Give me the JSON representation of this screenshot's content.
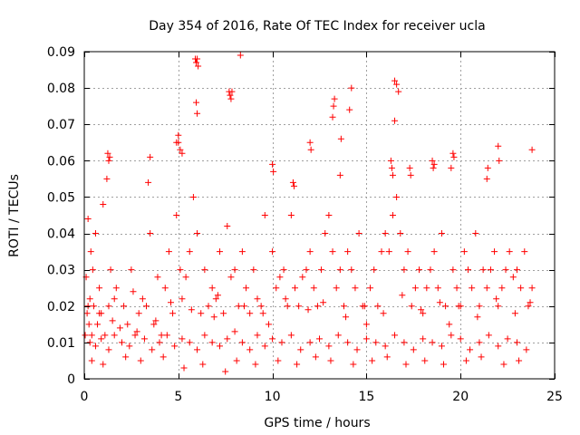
{
  "chart_data": {
    "type": "scatter",
    "title": "Day 354 of 2016, Rate Of TEC Index for receiver ucla",
    "xlabel": "GPS time / hours",
    "ylabel": "ROTI / TECUs",
    "xlim": [
      0,
      25
    ],
    "ylim": [
      0,
      0.09
    ],
    "xticks": [
      0,
      5,
      10,
      15,
      20,
      25
    ],
    "yticks": [
      0,
      0.01,
      0.02,
      0.03,
      0.04,
      0.05,
      0.06,
      0.07,
      0.08,
      0.09
    ],
    "xtick_labels": [
      "0",
      "5",
      "10",
      "15",
      "20",
      "25"
    ],
    "ytick_labels": [
      "0",
      "0.01",
      "0.02",
      "0.03",
      "0.04",
      "0.05",
      "0.06",
      "0.07",
      "0.08",
      "0.09"
    ],
    "grid": true,
    "marker": "+",
    "marker_color": "#ff0000",
    "series": [
      {
        "name": "ROTI",
        "x": [
          0.05,
          0.1,
          0.15,
          0.2,
          0.25,
          0.3,
          0.35,
          0.4,
          0.45,
          0.5,
          0.6,
          0.7,
          0.8,
          0.9,
          1.0,
          1.1,
          1.2,
          1.3,
          1.4,
          1.5,
          1.7,
          1.9,
          2.1,
          2.3,
          2.5,
          2.7,
          2.9,
          3.1,
          3.3,
          3.5,
          3.7,
          3.9,
          4.1,
          4.3,
          4.5,
          4.7,
          4.9,
          5.0,
          5.1,
          5.2,
          5.4,
          5.6,
          5.8,
          6.0,
          6.2,
          6.4,
          6.6,
          6.8,
          7.0,
          7.2,
          7.4,
          7.6,
          7.8,
          8.0,
          8.2,
          8.4,
          8.6,
          8.8,
          9.0,
          9.2,
          9.4,
          9.6,
          9.8,
          10.0,
          10.2,
          10.4,
          10.6,
          10.8,
          11.0,
          11.2,
          11.4,
          11.6,
          11.8,
          12.0,
          12.2,
          12.4,
          12.6,
          12.8,
          13.0,
          13.2,
          13.4,
          13.6,
          13.8,
          14.0,
          14.2,
          14.4,
          14.6,
          14.8,
          15.0,
          15.2,
          15.4,
          15.6,
          15.8,
          16.0,
          16.2,
          16.4,
          16.6,
          16.8,
          17.0,
          17.2,
          17.4,
          17.6,
          17.8,
          18.0,
          18.2,
          18.4,
          18.6,
          18.8,
          19.0,
          19.2,
          19.4,
          19.6,
          19.8,
          20.0,
          20.2,
          20.4,
          20.6,
          20.8,
          21.0,
          21.2,
          21.4,
          21.6,
          21.8,
          22.0,
          22.2,
          22.4,
          22.6,
          22.8,
          23.0,
          23.2,
          23.4,
          23.6,
          23.8,
          0.3,
          0.6,
          0.9,
          1.3,
          1.6,
          2.0,
          2.4,
          2.8,
          3.2,
          3.6,
          4.0,
          4.4,
          4.8,
          5.2,
          5.6,
          6.0,
          6.4,
          6.8,
          7.2,
          7.6,
          8.0,
          8.4,
          8.8,
          9.2,
          9.6,
          10.0,
          10.5,
          11.0,
          11.5,
          12.0,
          12.5,
          13.0,
          13.5,
          14.0,
          14.5,
          15.0,
          15.5,
          16.0,
          16.5,
          17.0,
          17.5,
          18.0,
          18.5,
          19.0,
          19.5,
          20.0,
          20.5,
          21.0,
          21.5,
          22.0,
          22.5,
          23.0,
          23.5,
          5.9,
          5.95,
          6.0,
          6.05,
          5.95,
          6.0,
          7.7,
          7.75,
          7.8,
          7.85,
          8.3,
          16.5,
          16.6,
          16.7,
          16.5,
          14.2,
          14.1,
          13.3,
          13.25,
          13.2,
          16.3,
          16.35,
          16.4,
          12.0,
          12.05,
          22.0,
          22.05,
          19.6,
          19.65,
          18.5,
          18.55,
          18.6,
          1.25,
          1.3,
          1.35,
          4.9,
          5.0,
          5.1,
          5.2,
          3.4,
          3.5,
          10.0,
          10.05,
          11.1,
          11.15,
          17.3,
          17.35,
          19.5,
          21.4,
          21.45,
          13.6,
          13.65,
          23.8,
          0.4,
          1.0,
          2.2,
          3.0,
          4.2,
          5.3,
          6.3,
          7.5,
          8.1,
          9.1,
          10.3,
          11.3,
          12.3,
          13.1,
          14.3,
          15.3,
          16.1,
          17.1,
          18.1,
          19.1,
          20.3,
          21.1,
          22.3,
          23.1,
          0.2,
          0.8,
          1.6,
          2.6,
          3.8,
          4.6,
          5.7,
          6.9,
          7.1,
          8.5,
          9.5,
          10.7,
          11.9,
          12.7,
          13.9,
          14.9,
          15.9,
          16.9,
          17.9,
          18.9,
          19.9,
          20.9,
          21.9,
          22.9,
          23.7
        ],
        "y": [
          0.012,
          0.028,
          0.018,
          0.044,
          0.015,
          0.022,
          0.035,
          0.012,
          0.03,
          0.02,
          0.04,
          0.015,
          0.025,
          0.018,
          0.048,
          0.012,
          0.055,
          0.02,
          0.03,
          0.016,
          0.025,
          0.014,
          0.02,
          0.015,
          0.03,
          0.012,
          0.018,
          0.022,
          0.02,
          0.04,
          0.015,
          0.028,
          0.012,
          0.025,
          0.035,
          0.018,
          0.045,
          0.065,
          0.03,
          0.022,
          0.028,
          0.035,
          0.05,
          0.04,
          0.018,
          0.03,
          0.02,
          0.025,
          0.022,
          0.035,
          0.018,
          0.042,
          0.028,
          0.03,
          0.02,
          0.035,
          0.025,
          0.018,
          0.03,
          0.022,
          0.02,
          0.045,
          0.015,
          0.035,
          0.025,
          0.028,
          0.03,
          0.02,
          0.045,
          0.025,
          0.02,
          0.028,
          0.03,
          0.035,
          0.025,
          0.02,
          0.03,
          0.04,
          0.045,
          0.035,
          0.025,
          0.03,
          0.02,
          0.035,
          0.03,
          0.025,
          0.04,
          0.02,
          0.015,
          0.025,
          0.03,
          0.02,
          0.035,
          0.04,
          0.035,
          0.045,
          0.05,
          0.04,
          0.03,
          0.035,
          0.02,
          0.025,
          0.03,
          0.018,
          0.025,
          0.03,
          0.035,
          0.025,
          0.04,
          0.02,
          0.015,
          0.03,
          0.025,
          0.02,
          0.035,
          0.03,
          0.025,
          0.04,
          0.02,
          0.03,
          0.025,
          0.03,
          0.035,
          0.02,
          0.025,
          0.03,
          0.035,
          0.028,
          0.03,
          0.025,
          0.035,
          0.02,
          0.025,
          0.01,
          0.009,
          0.011,
          0.008,
          0.012,
          0.01,
          0.009,
          0.013,
          0.011,
          0.008,
          0.01,
          0.012,
          0.009,
          0.011,
          0.01,
          0.008,
          0.012,
          0.01,
          0.009,
          0.011,
          0.013,
          0.01,
          0.008,
          0.012,
          0.009,
          0.011,
          0.01,
          0.012,
          0.008,
          0.01,
          0.011,
          0.009,
          0.012,
          0.01,
          0.008,
          0.011,
          0.01,
          0.009,
          0.012,
          0.01,
          0.008,
          0.011,
          0.01,
          0.009,
          0.012,
          0.011,
          0.008,
          0.01,
          0.012,
          0.009,
          0.011,
          0.01,
          0.008,
          0.088,
          0.087,
          0.088,
          0.086,
          0.076,
          0.073,
          0.079,
          0.078,
          0.077,
          0.079,
          0.089,
          0.082,
          0.081,
          0.079,
          0.071,
          0.08,
          0.074,
          0.077,
          0.075,
          0.072,
          0.06,
          0.058,
          0.056,
          0.065,
          0.063,
          0.064,
          0.06,
          0.062,
          0.061,
          0.06,
          0.058,
          0.059,
          0.062,
          0.06,
          0.061,
          0.065,
          0.067,
          0.063,
          0.062,
          0.054,
          0.061,
          0.059,
          0.057,
          0.054,
          0.053,
          0.058,
          0.056,
          0.058,
          0.055,
          0.058,
          0.056,
          0.066,
          0.063,
          0.005,
          0.004,
          0.006,
          0.005,
          0.006,
          0.003,
          0.004,
          0.002,
          0.005,
          0.004,
          0.005,
          0.004,
          0.006,
          0.005,
          0.004,
          0.005,
          0.006,
          0.004,
          0.005,
          0.004,
          0.005,
          0.006,
          0.004,
          0.005,
          0.02,
          0.018,
          0.022,
          0.024,
          0.016,
          0.021,
          0.019,
          0.017,
          0.023,
          0.02,
          0.018,
          0.022,
          0.019,
          0.021,
          0.017,
          0.02,
          0.018,
          0.023,
          0.019,
          0.021,
          0.02,
          0.017,
          0.022,
          0.018,
          0.021
        ]
      }
    ]
  }
}
